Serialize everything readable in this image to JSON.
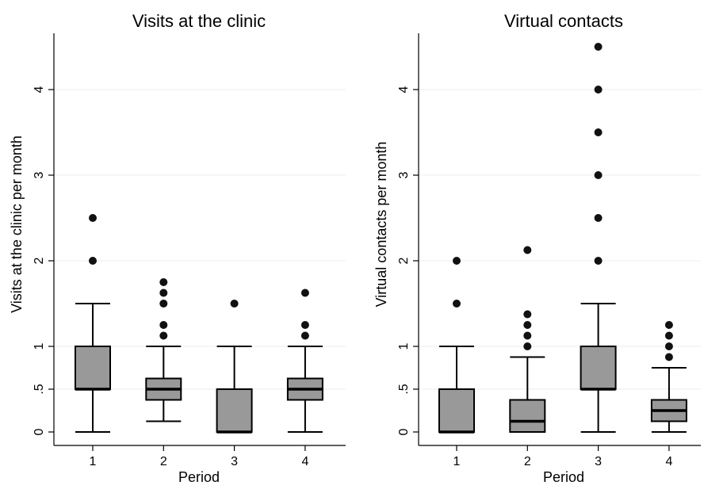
{
  "chart_data": [
    {
      "type": "box",
      "title": "Visits at the clinic",
      "xlabel": "Period",
      "ylabel": "Visits at the clinic per month",
      "ylim": [
        0,
        4.5
      ],
      "yticks": [
        {
          "value": 0,
          "label": "0"
        },
        {
          "value": 0.5,
          "label": ".5"
        },
        {
          "value": 1,
          "label": "1"
        },
        {
          "value": 2,
          "label": "2"
        },
        {
          "value": 3,
          "label": "3"
        },
        {
          "value": 4,
          "label": "4"
        }
      ],
      "grid": true,
      "box_color": "#999999",
      "categories": [
        "1",
        "2",
        "3",
        "4"
      ],
      "boxes": [
        {
          "category": "1",
          "whisker_low": 0,
          "q1": 0.5,
          "median": 0.5,
          "q3": 1.0,
          "whisker_high": 1.5,
          "outliers": [
            2,
            2.5
          ]
        },
        {
          "category": "2",
          "whisker_low": 0.125,
          "q1": 0.375,
          "median": 0.5,
          "q3": 0.625,
          "whisker_high": 1.0,
          "outliers": [
            1.125,
            1.25,
            1.5,
            1.625,
            1.75
          ]
        },
        {
          "category": "3",
          "whisker_low": 0,
          "q1": 0,
          "median": 0,
          "q3": 0.5,
          "whisker_high": 1.0,
          "outliers": [
            1.5
          ]
        },
        {
          "category": "4",
          "whisker_low": 0,
          "q1": 0.375,
          "median": 0.5,
          "q3": 0.625,
          "whisker_high": 1.0,
          "outliers": [
            1.125,
            1.25,
            1.625
          ]
        }
      ]
    },
    {
      "type": "box",
      "title": "Virtual contacts",
      "xlabel": "Period",
      "ylabel": "Virtual contacts per month",
      "ylim": [
        0,
        4.5
      ],
      "yticks": [
        {
          "value": 0,
          "label": "0"
        },
        {
          "value": 0.5,
          "label": ".5"
        },
        {
          "value": 1,
          "label": "1"
        },
        {
          "value": 2,
          "label": "2"
        },
        {
          "value": 3,
          "label": "3"
        },
        {
          "value": 4,
          "label": "4"
        }
      ],
      "grid": true,
      "box_color": "#999999",
      "categories": [
        "1",
        "2",
        "3",
        "4"
      ],
      "boxes": [
        {
          "category": "1",
          "whisker_low": 0,
          "q1": 0,
          "median": 0,
          "q3": 0.5,
          "whisker_high": 1.0,
          "outliers": [
            1.5,
            2.0
          ]
        },
        {
          "category": "2",
          "whisker_low": 0,
          "q1": 0,
          "median": 0.125,
          "q3": 0.375,
          "whisker_high": 0.875,
          "outliers": [
            1.0,
            1.125,
            1.25,
            1.375,
            2.125
          ]
        },
        {
          "category": "3",
          "whisker_low": 0,
          "q1": 0.5,
          "median": 0.5,
          "q3": 1.0,
          "whisker_high": 1.5,
          "outliers": [
            2.0,
            2.5,
            3.0,
            3.5,
            4.0,
            4.5
          ]
        },
        {
          "category": "4",
          "whisker_low": 0,
          "q1": 0.125,
          "median": 0.25,
          "q3": 0.375,
          "whisker_high": 0.75,
          "outliers": [
            0.875,
            1.0,
            1.125,
            1.25
          ]
        }
      ]
    }
  ]
}
